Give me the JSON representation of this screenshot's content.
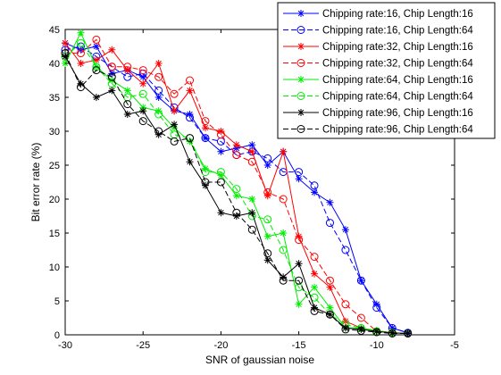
{
  "chart_data": {
    "type": "line",
    "xlabel": "SNR of gaussian noise",
    "ylabel": "Bit error rate (%)",
    "xlim": [
      -30,
      -5
    ],
    "ylim": [
      0,
      45
    ],
    "xticks": [
      -30,
      -25,
      -20,
      -15,
      -10,
      -5
    ],
    "yticks": [
      0,
      5,
      10,
      15,
      20,
      25,
      30,
      35,
      40,
      45
    ],
    "grid": false,
    "legend_position": "top-right",
    "x": [
      -30,
      -29,
      -28,
      -27,
      -26,
      -25,
      -24,
      -23,
      -22,
      -21,
      -20,
      -19,
      -18,
      -17,
      -16,
      -15,
      -14,
      -13,
      -12,
      -11,
      -10,
      -9,
      -8
    ],
    "series": [
      {
        "name": "Chipping rate:16, Chip Length:16",
        "color": "#0000ff",
        "line": "solid",
        "marker": "star",
        "values": [
          43,
          42,
          42.5,
          38.5,
          39,
          38,
          35,
          33,
          32.5,
          29,
          27,
          27.5,
          28,
          25,
          27,
          23,
          21,
          19.5,
          15.5,
          8,
          4.5,
          1,
          0.3
        ]
      },
      {
        "name": "Chipping rate:16, Chip Length:64",
        "color": "#0000ff",
        "line": "dashed",
        "marker": "circle",
        "values": [
          42,
          42.5,
          41,
          39.5,
          38,
          38.5,
          36,
          33.5,
          32,
          29,
          28.5,
          26.5,
          27,
          26,
          24,
          24,
          22,
          16.5,
          12.5,
          8,
          4,
          1,
          0.3
        ]
      },
      {
        "name": "Chipping rate:32, Chip Length:16",
        "color": "#ff0000",
        "line": "solid",
        "marker": "star",
        "values": [
          43,
          40,
          40.5,
          42,
          39,
          37,
          40,
          33,
          36,
          30.5,
          30,
          28,
          27,
          20.5,
          27,
          14.5,
          9,
          7,
          2,
          1,
          0.6,
          0.3,
          0.2
        ]
      },
      {
        "name": "Chipping rate:32, Chip Length:64",
        "color": "#ff0000",
        "line": "dashed",
        "marker": "circle",
        "values": [
          41.5,
          41.5,
          43.5,
          39.5,
          39.5,
          39,
          38,
          35.5,
          37.5,
          31.5,
          29.5,
          26.5,
          25.5,
          21,
          20,
          14,
          11.5,
          8,
          4.5,
          2.5,
          0.5,
          0.3,
          0.2
        ]
      },
      {
        "name": "Chipping rate:64, Chip Length:16",
        "color": "#00ee00",
        "line": "solid",
        "marker": "star",
        "values": [
          40,
          44.5,
          39.5,
          37.5,
          36,
          33.5,
          33,
          30.5,
          28.5,
          24.5,
          23.5,
          20.5,
          20,
          14.5,
          15,
          4.5,
          7,
          4,
          1,
          1,
          0.6,
          0.3,
          0.2
        ]
      },
      {
        "name": "Chipping rate:64, Chip Length:64",
        "color": "#00ee00",
        "line": "dashed",
        "marker": "circle",
        "values": [
          41,
          43,
          39.5,
          37,
          35,
          35.5,
          32.5,
          29.5,
          29,
          24,
          24,
          21.5,
          17.5,
          17,
          12.5,
          7,
          5.5,
          3,
          1.5,
          1,
          0.5,
          0.3,
          0.2
        ]
      },
      {
        "name": "Chipping rate:96, Chip Length:16",
        "color": "#000000",
        "line": "solid",
        "marker": "star",
        "values": [
          41,
          37,
          35,
          36,
          32.5,
          33,
          29.5,
          31,
          25.5,
          22,
          18,
          17.5,
          18,
          11,
          8.5,
          10.5,
          4,
          3,
          1,
          0.8,
          0.5,
          0.3,
          0.2
        ]
      },
      {
        "name": "Chipping rate:96, Chip Length:64",
        "color": "#000000",
        "line": "dashed",
        "marker": "circle",
        "values": [
          41.5,
          36.5,
          39,
          38,
          34,
          31.5,
          30,
          28.5,
          29,
          22.5,
          22.5,
          18,
          15.5,
          12,
          8,
          8,
          3.5,
          3,
          0.8,
          0.6,
          0.4,
          0.2,
          0.2
        ]
      }
    ]
  }
}
